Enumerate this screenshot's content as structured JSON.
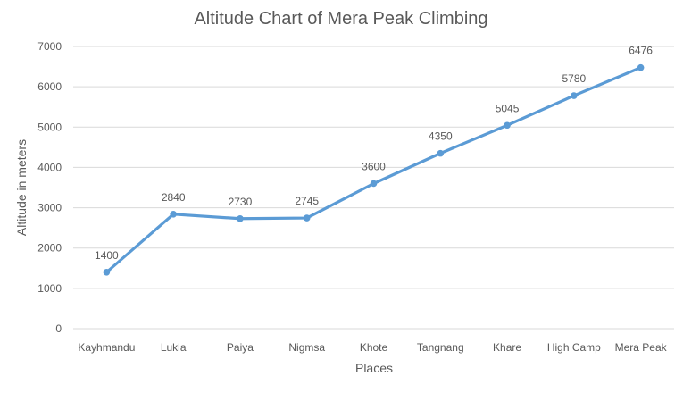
{
  "chart_data": {
    "type": "line",
    "title": "Altitude Chart of Mera Peak Climbing",
    "xlabel": "Places",
    "ylabel": "Altitude in meters",
    "categories": [
      "Kayhmandu",
      "Lukla",
      "Paiya",
      "Nigmsa",
      "Khote",
      "Tangnang",
      "Khare",
      "High Camp",
      "Mera Peak"
    ],
    "series": [
      {
        "name": "Altitude",
        "values": [
          1400,
          2840,
          2730,
          2745,
          3600,
          4350,
          5045,
          5780,
          6476
        ],
        "color": "#5B9BD5"
      }
    ],
    "ylim": [
      0,
      7000
    ],
    "yticks": [
      0,
      1000,
      2000,
      3000,
      4000,
      5000,
      6000,
      7000
    ],
    "grid": true,
    "data_labels": true,
    "legend": "none"
  }
}
